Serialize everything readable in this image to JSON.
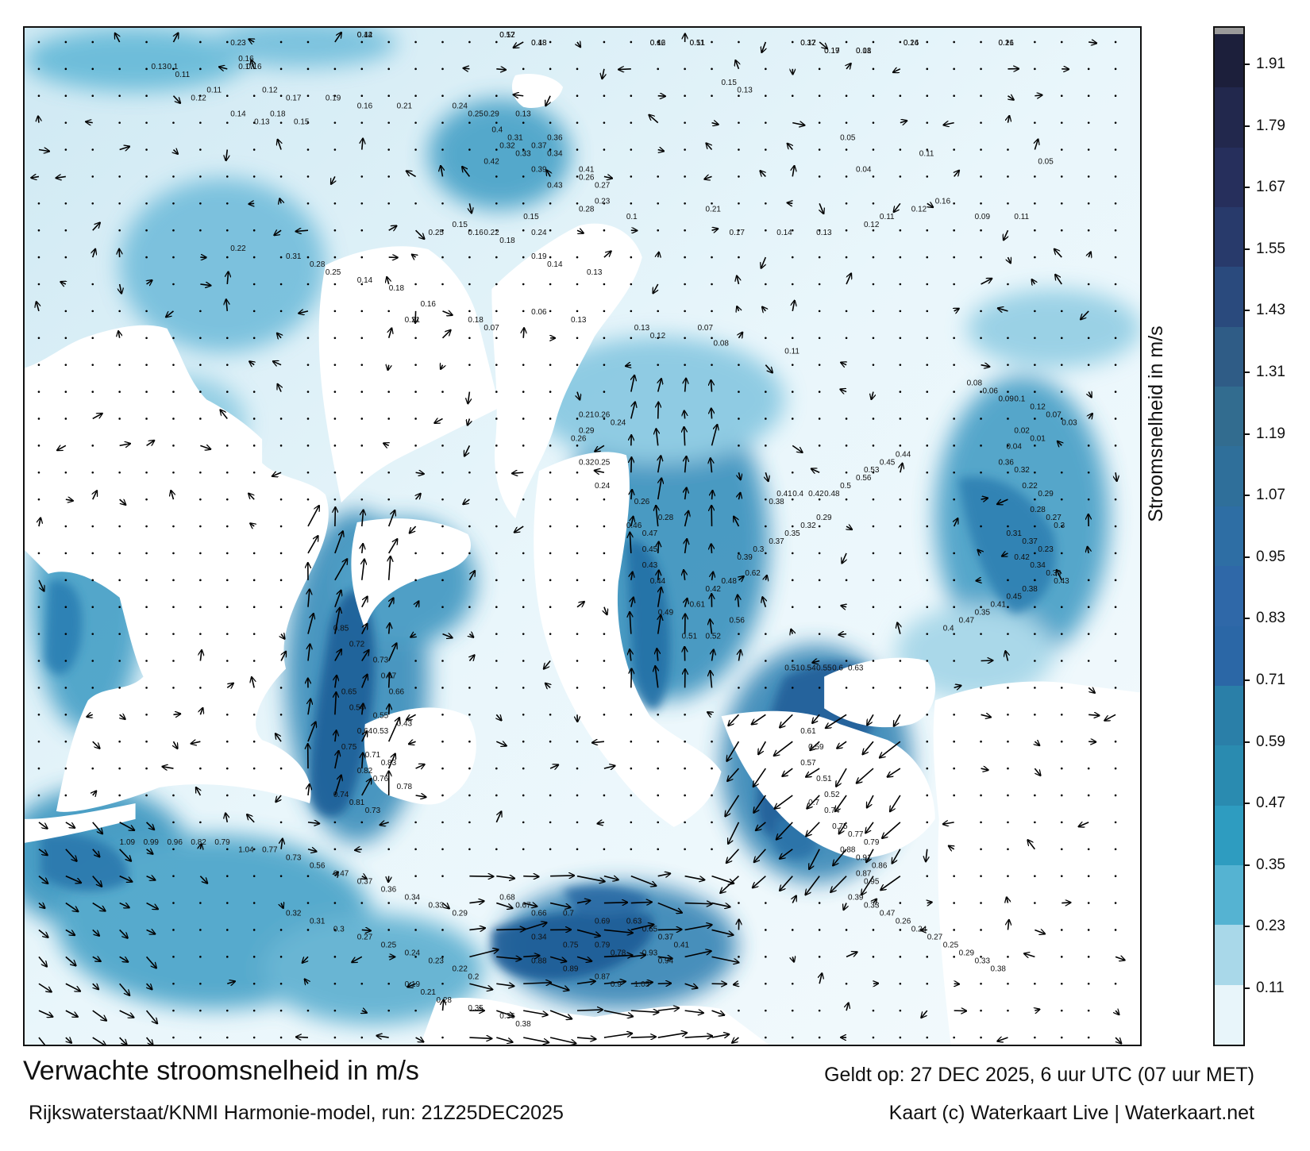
{
  "title": "Verwachte stroomsnelheid in m/s",
  "source": "Rijkswaterstaat/KNMI Harmonie-model, run: 21Z25DEC2025",
  "valid_time": "Geldt op: 27 DEC 2025, 6 uur UTC (07 uur MET)",
  "credit": "Kaart (c) Waterkaart Live | Waterkaart.net",
  "colorbar": {
    "label": "Stroomsnelheid in m/s",
    "ticks": [
      "1.91",
      "1.79",
      "1.67",
      "1.55",
      "1.43",
      "1.31",
      "1.19",
      "1.07",
      "0.95",
      "0.83",
      "0.71",
      "0.59",
      "0.47",
      "0.35",
      "0.23",
      "0.11"
    ],
    "colors": [
      "#1c1f3b",
      "#22284d",
      "#262f5c",
      "#283a6b",
      "#2a4a7d",
      "#2f5c86",
      "#326c8f",
      "#2f6f9a",
      "#2e6ea4",
      "#2f68a8",
      "#2b67a6",
      "#2a7fa8",
      "#2a8bb0",
      "#2e9cc0",
      "#55b3d2",
      "#a9d8e9",
      "#e8f5fa"
    ]
  },
  "speed_labels": [
    {
      "t": "0.12"
    },
    {
      "t": "0.17"
    },
    {
      "t": "0.18"
    },
    {
      "t": "0.12"
    },
    {
      "t": "0.11"
    },
    {
      "t": "0.12"
    },
    {
      "t": "0.14"
    },
    {
      "t": "0.16"
    },
    {
      "t": "0.17"
    },
    {
      "t": "0.01"
    },
    {
      "t": "0.23"
    },
    {
      "t": "0.16"
    },
    {
      "t": "0.17"
    },
    {
      "t": "0.13"
    },
    {
      "t": "0.1"
    },
    {
      "t": "0.11"
    },
    {
      "t": "0.12"
    },
    {
      "t": "0.11"
    },
    {
      "t": "0.12"
    },
    {
      "t": "0.17"
    },
    {
      "t": "0.14"
    },
    {
      "t": "0.13"
    },
    {
      "t": "0.15"
    },
    {
      "t": "0.16"
    },
    {
      "t": "0.21"
    },
    {
      "t": "0.19"
    },
    {
      "t": "0.18"
    },
    {
      "t": "0.16"
    },
    {
      "t": "0.15"
    },
    {
      "t": "0.13"
    },
    {
      "t": "0.24"
    },
    {
      "t": "0.25"
    },
    {
      "t": "0.29"
    },
    {
      "t": "0.13"
    },
    {
      "t": "0.4"
    },
    {
      "t": "0.31"
    },
    {
      "t": "0.32"
    },
    {
      "t": "0.37"
    },
    {
      "t": "0.34"
    },
    {
      "t": "0.33"
    },
    {
      "t": "0.42"
    },
    {
      "t": "0.39"
    },
    {
      "t": "0.41"
    },
    {
      "t": "0.36"
    },
    {
      "t": "0.26"
    },
    {
      "t": "0.27"
    },
    {
      "t": "0.23"
    },
    {
      "t": "0.43"
    },
    {
      "t": "0.28"
    },
    {
      "t": "0.1"
    },
    {
      "t": "0.21"
    },
    {
      "t": "0.17"
    },
    {
      "t": "0.14"
    },
    {
      "t": "0.13"
    },
    {
      "t": "0.12"
    },
    {
      "t": "0.11"
    },
    {
      "t": "0.12"
    },
    {
      "t": "0.16"
    },
    {
      "t": "0.09"
    },
    {
      "t": "0.11"
    },
    {
      "t": "0.05"
    },
    {
      "t": "0.11"
    },
    {
      "t": "0.05"
    },
    {
      "t": "0.04"
    },
    {
      "t": "0.15"
    },
    {
      "t": "0.16"
    },
    {
      "t": "0.22"
    },
    {
      "t": "0.25"
    },
    {
      "t": "0.18"
    },
    {
      "t": "0.24"
    },
    {
      "t": "0.15"
    },
    {
      "t": "0.19"
    },
    {
      "t": "0.14"
    },
    {
      "t": "0.13"
    },
    {
      "t": "0.22"
    },
    {
      "t": "0.31"
    },
    {
      "t": "0.28"
    },
    {
      "t": "0.25"
    },
    {
      "t": "0.14"
    },
    {
      "t": "0.18"
    },
    {
      "t": "0.16"
    },
    {
      "t": "0.21"
    },
    {
      "t": "0.18"
    },
    {
      "t": "0.07"
    },
    {
      "t": "0.06"
    },
    {
      "t": "0.13"
    },
    {
      "t": "0.13"
    },
    {
      "t": "0.12"
    },
    {
      "t": "0.07"
    },
    {
      "t": "0.08"
    },
    {
      "t": "0.11"
    },
    {
      "t": "0.21"
    },
    {
      "t": "0.26"
    },
    {
      "t": "0.24"
    },
    {
      "t": "0.29"
    },
    {
      "t": "0.26"
    },
    {
      "t": "0.32"
    },
    {
      "t": "0.25"
    },
    {
      "t": "0.24"
    },
    {
      "t": "0.26"
    },
    {
      "t": "0.28"
    },
    {
      "t": "0.46"
    },
    {
      "t": "0.47"
    },
    {
      "t": "0.45"
    },
    {
      "t": "0.43"
    },
    {
      "t": "0.44"
    },
    {
      "t": "0.49"
    },
    {
      "t": "0.51"
    },
    {
      "t": "0.52"
    },
    {
      "t": "0.56"
    },
    {
      "t": "0.61"
    },
    {
      "t": "0.42"
    },
    {
      "t": "0.48"
    },
    {
      "t": "0.62"
    },
    {
      "t": "0.39"
    },
    {
      "t": "0.3"
    },
    {
      "t": "0.37"
    },
    {
      "t": "0.35"
    },
    {
      "t": "0.32"
    },
    {
      "t": "0.29"
    },
    {
      "t": "0.38"
    },
    {
      "t": "0.41"
    },
    {
      "t": "0.4"
    },
    {
      "t": "0.42"
    },
    {
      "t": "0.48"
    },
    {
      "t": "0.5"
    },
    {
      "t": "0.56"
    },
    {
      "t": "0.53"
    },
    {
      "t": "0.45"
    },
    {
      "t": "0.44"
    },
    {
      "t": "0.51"
    },
    {
      "t": "0.54"
    },
    {
      "t": "0.55"
    },
    {
      "t": "0.6"
    },
    {
      "t": "0.63"
    },
    {
      "t": "0.61"
    },
    {
      "t": "0.59"
    },
    {
      "t": "0.57"
    },
    {
      "t": "0.51"
    },
    {
      "t": "0.52"
    },
    {
      "t": "0.7"
    },
    {
      "t": "0.74"
    },
    {
      "t": "0.75"
    },
    {
      "t": "0.77"
    },
    {
      "t": "0.79"
    },
    {
      "t": "0.88"
    },
    {
      "t": "0.91"
    },
    {
      "t": "0.86"
    },
    {
      "t": "0.87"
    },
    {
      "t": "0.95"
    },
    {
      "t": "0.85"
    },
    {
      "t": "0.72"
    },
    {
      "t": "0.73"
    },
    {
      "t": "0.67"
    },
    {
      "t": "0.66"
    },
    {
      "t": "0.65"
    },
    {
      "t": "0.54"
    },
    {
      "t": "0.55"
    },
    {
      "t": "0.43"
    },
    {
      "t": "0.53"
    },
    {
      "t": "0.64"
    },
    {
      "t": "0.75"
    },
    {
      "t": "0.71"
    },
    {
      "t": "0.83"
    },
    {
      "t": "0.82"
    },
    {
      "t": "0.76"
    },
    {
      "t": "0.78"
    },
    {
      "t": "0.74"
    },
    {
      "t": "0.81"
    },
    {
      "t": "0.73"
    },
    {
      "t": "0.68"
    },
    {
      "t": "0.67"
    },
    {
      "t": "0.66"
    },
    {
      "t": "0.7"
    },
    {
      "t": "0.69"
    },
    {
      "t": "0.63"
    },
    {
      "t": "0.65"
    },
    {
      "t": "0.37"
    },
    {
      "t": "0.41"
    },
    {
      "t": "0.34"
    },
    {
      "t": "0.75"
    },
    {
      "t": "0.79"
    },
    {
      "t": "0.78"
    },
    {
      "t": "0.93"
    },
    {
      "t": "0.94"
    },
    {
      "t": "0.88"
    },
    {
      "t": "0.89"
    },
    {
      "t": "0.87"
    },
    {
      "t": "0.9"
    },
    {
      "t": "1.05"
    },
    {
      "t": "1.09"
    },
    {
      "t": "0.99"
    },
    {
      "t": "0.96"
    },
    {
      "t": "0.82"
    },
    {
      "t": "0.79"
    },
    {
      "t": "1.04"
    },
    {
      "t": "0.77"
    },
    {
      "t": "0.73"
    },
    {
      "t": "0.56"
    },
    {
      "t": "0.47"
    },
    {
      "t": "0.37"
    },
    {
      "t": "0.36"
    },
    {
      "t": "0.34"
    },
    {
      "t": "0.33"
    },
    {
      "t": "0.29"
    },
    {
      "t": "0.32"
    },
    {
      "t": "0.31"
    },
    {
      "t": "0.3"
    },
    {
      "t": "0.27"
    },
    {
      "t": "0.25"
    },
    {
      "t": "0.24"
    },
    {
      "t": "0.23"
    },
    {
      "t": "0.22"
    },
    {
      "t": "0.2"
    },
    {
      "t": "0.19"
    },
    {
      "t": "0.21"
    },
    {
      "t": "0.28"
    },
    {
      "t": "0.35"
    },
    {
      "t": "0.36"
    },
    {
      "t": "0.38"
    },
    {
      "t": "0.39"
    },
    {
      "t": "0.33"
    },
    {
      "t": "0.47"
    },
    {
      "t": "0.26"
    },
    {
      "t": "0.24"
    },
    {
      "t": "0.27"
    },
    {
      "t": "0.25"
    },
    {
      "t": "0.29"
    },
    {
      "t": "0.33"
    },
    {
      "t": "0.38"
    },
    {
      "t": "0.08"
    },
    {
      "t": "0.06"
    },
    {
      "t": "0.09"
    },
    {
      "t": "0.1"
    },
    {
      "t": "0.12"
    },
    {
      "t": "0.07"
    },
    {
      "t": "0.03"
    },
    {
      "t": "0.02"
    },
    {
      "t": "0.01"
    },
    {
      "t": "0.04"
    },
    {
      "t": "0.36"
    },
    {
      "t": "0.32"
    },
    {
      "t": "0.22"
    },
    {
      "t": "0.29"
    },
    {
      "t": "0.28"
    },
    {
      "t": "0.27"
    },
    {
      "t": "0.3"
    },
    {
      "t": "0.31"
    },
    {
      "t": "0.37"
    },
    {
      "t": "0.23"
    },
    {
      "t": "0.42"
    },
    {
      "t": "0.34"
    },
    {
      "t": "0.39"
    },
    {
      "t": "0.43"
    },
    {
      "t": "0.38"
    },
    {
      "t": "0.45"
    },
    {
      "t": "0.41"
    },
    {
      "t": "0.35"
    },
    {
      "t": "0.47"
    },
    {
      "t": "0.4"
    },
    {
      "t": "0.44"
    },
    {
      "t": "0.52"
    },
    {
      "t": "0.48"
    },
    {
      "t": "0.46"
    },
    {
      "t": "0.51"
    },
    {
      "t": "0.37"
    },
    {
      "t": "0.26"
    },
    {
      "t": "0.21"
    },
    {
      "t": "0.19"
    },
    {
      "t": "0.18"
    }
  ]
}
